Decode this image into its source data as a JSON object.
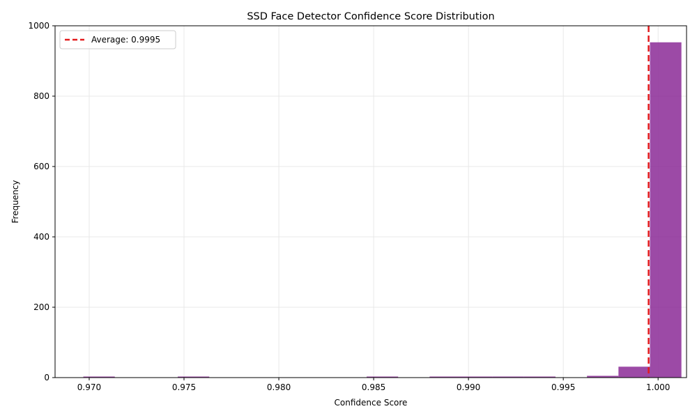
{
  "chart_data": {
    "type": "bar",
    "title": "SSD Face Detector Confidence Score Distribution",
    "xlabel": "Confidence Score",
    "ylabel": "Frequency",
    "xlim": [
      0.9682,
      1.0015
    ],
    "ylim": [
      0,
      1000
    ],
    "xticks": [
      0.97,
      0.975,
      0.98,
      0.985,
      0.99,
      0.995,
      1.0
    ],
    "xtick_labels": [
      "0.970",
      "0.975",
      "0.980",
      "0.985",
      "0.990",
      "0.995",
      "1.000"
    ],
    "yticks": [
      0,
      200,
      400,
      600,
      800,
      1000
    ],
    "ytick_labels": [
      "0",
      "200",
      "400",
      "600",
      "800",
      "1000"
    ],
    "grid": true,
    "bar_color": "#8B2A96",
    "bins": [
      {
        "start": 0.96969,
        "end": 0.97135,
        "count": 1
      },
      {
        "start": 0.97135,
        "end": 0.97301,
        "count": 0
      },
      {
        "start": 0.97301,
        "end": 0.97467,
        "count": 0
      },
      {
        "start": 0.97467,
        "end": 0.97633,
        "count": 1
      },
      {
        "start": 0.97633,
        "end": 0.97799,
        "count": 0
      },
      {
        "start": 0.97799,
        "end": 0.97965,
        "count": 0
      },
      {
        "start": 0.97965,
        "end": 0.98131,
        "count": 0
      },
      {
        "start": 0.98131,
        "end": 0.98297,
        "count": 0
      },
      {
        "start": 0.98297,
        "end": 0.98463,
        "count": 0
      },
      {
        "start": 0.98463,
        "end": 0.98629,
        "count": 1
      },
      {
        "start": 0.98629,
        "end": 0.98795,
        "count": 0
      },
      {
        "start": 0.98795,
        "end": 0.98961,
        "count": 1
      },
      {
        "start": 0.98961,
        "end": 0.99127,
        "count": 1
      },
      {
        "start": 0.99127,
        "end": 0.99293,
        "count": 3
      },
      {
        "start": 0.99293,
        "end": 0.99459,
        "count": 1
      },
      {
        "start": 0.99459,
        "end": 0.99625,
        "count": 0
      },
      {
        "start": 0.99625,
        "end": 0.99791,
        "count": 5
      },
      {
        "start": 0.99791,
        "end": 0.99957,
        "count": 31
      },
      {
        "start": 0.99957,
        "end": 1.00123,
        "count": 953
      }
    ],
    "average": {
      "value": 0.9995,
      "label": "Average: 0.9995",
      "color": "#e31a1c"
    },
    "legend_position": "upper-left"
  }
}
